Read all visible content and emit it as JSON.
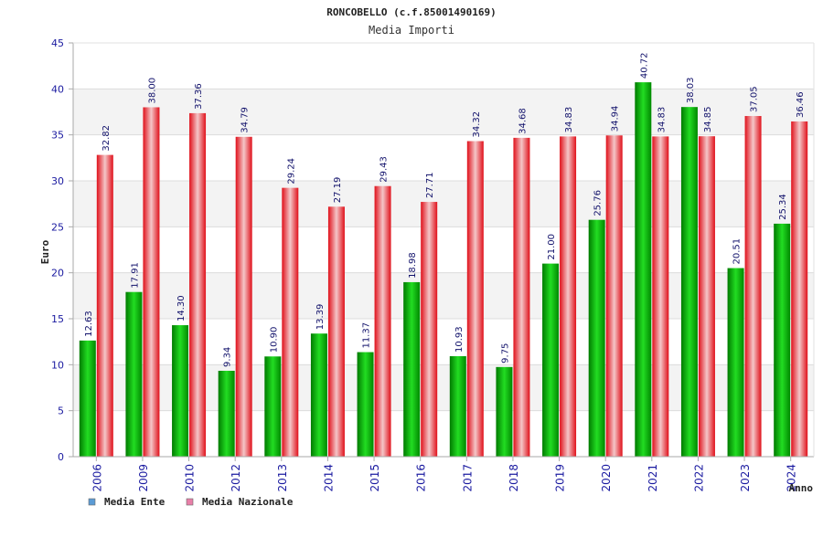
{
  "chart_data": {
    "type": "bar",
    "title": "RONCOBELLO (c.f.85001490169)",
    "subtitle": "Media Importi",
    "xlabel": "Anno",
    "ylabel": "Euro",
    "ylim": [
      0,
      45
    ],
    "yticks": [
      "0",
      "5",
      "10",
      "15",
      "20",
      "25",
      "30",
      "35",
      "40",
      "45"
    ],
    "grid": true,
    "legend_placement": "bottom-left",
    "categories": [
      "2006",
      "2009",
      "2010",
      "2012",
      "2013",
      "2014",
      "2015",
      "2016",
      "2017",
      "2018",
      "2019",
      "2020",
      "2021",
      "2022",
      "2023",
      "2024"
    ],
    "series": [
      {
        "name": "Media Ente",
        "legend_color": "#5b9bd5",
        "bar_color": "#00b000",
        "values": [
          12.63,
          17.91,
          14.3,
          9.34,
          10.9,
          13.39,
          11.37,
          18.98,
          10.93,
          9.75,
          21.0,
          25.76,
          40.72,
          38.03,
          20.51,
          25.34
        ],
        "value_labels": [
          "12.63",
          "17.91",
          "14.30",
          "9.34",
          "10.90",
          "13.39",
          "11.37",
          "18.98",
          "10.93",
          "9.75",
          "21.00",
          "25.76",
          "40.72",
          "38.03",
          "20.51",
          "25.34"
        ]
      },
      {
        "name": "Media Nazionale",
        "legend_color": "#e87fa8",
        "bar_color": "#e8141e",
        "values": [
          32.82,
          38.0,
          37.36,
          34.79,
          29.24,
          27.19,
          29.43,
          27.71,
          34.32,
          34.68,
          34.83,
          34.94,
          34.83,
          34.85,
          37.05,
          36.46
        ],
        "value_labels": [
          "32.82",
          "38.00",
          "37.36",
          "34.79",
          "29.24",
          "27.19",
          "29.43",
          "27.71",
          "34.32",
          "34.68",
          "34.83",
          "34.94",
          "34.83",
          "34.85",
          "37.05",
          "36.46"
        ]
      }
    ],
    "colors": {
      "band_light": "#ffffff",
      "band_dark": "#f3f3f3",
      "gridline": "#dcdcdc",
      "axis": "#aaaaaa",
      "tick_text": "#1a1aa0",
      "value_text": "#10106a"
    }
  }
}
